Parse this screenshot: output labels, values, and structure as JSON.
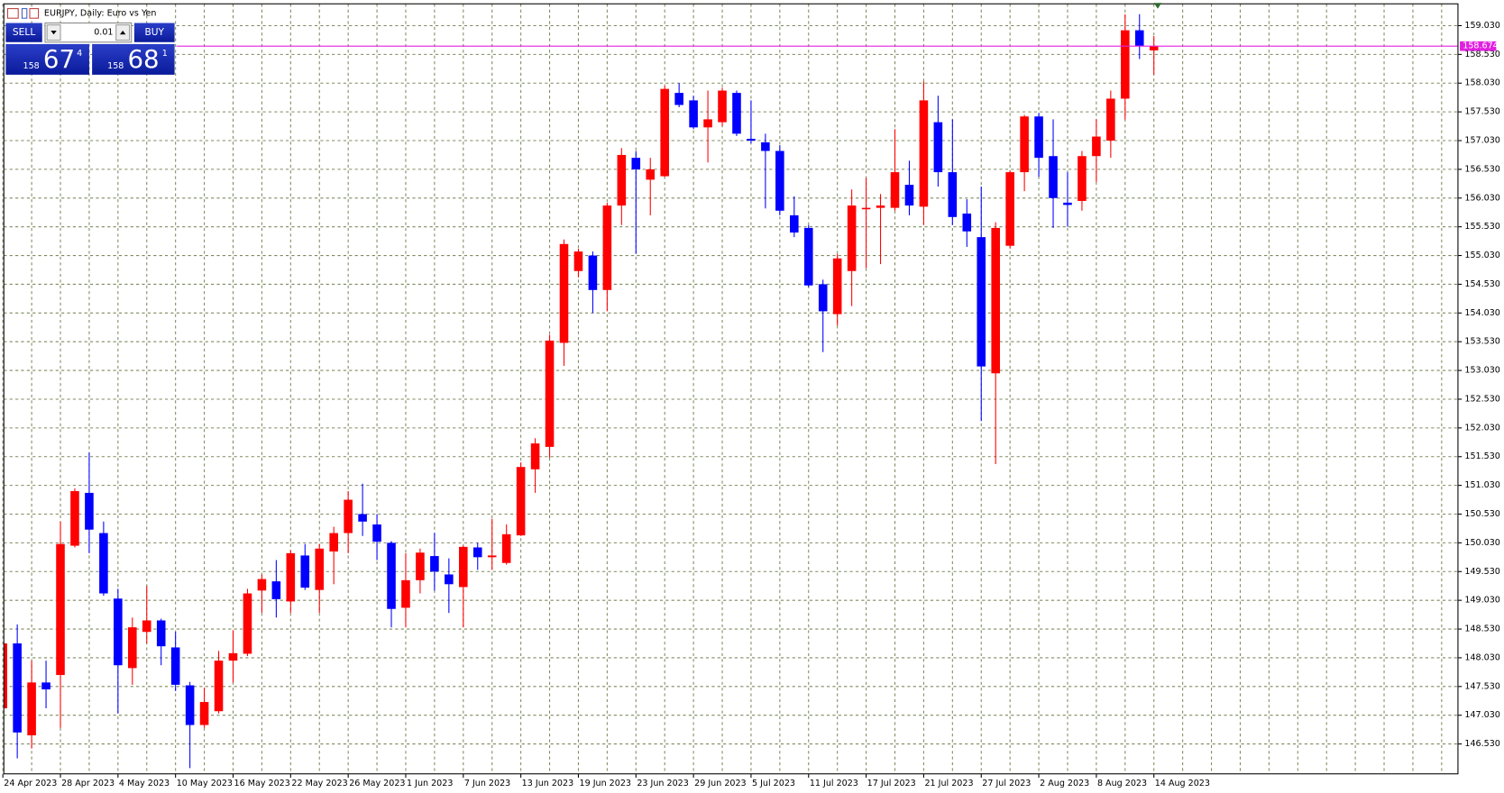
{
  "chart_data": {
    "type": "candlestick",
    "title": "EURJPY, Daily:  Euro vs Yen",
    "trade_panel": {
      "sell_label": "SELL",
      "buy_label": "BUY",
      "lot": 0.01,
      "sell_price": [
        "158",
        "67",
        "4"
      ],
      "buy_price": [
        "158",
        "68",
        "1"
      ]
    },
    "up_color": "#ff0000",
    "down_color": "#0000ff",
    "grid": true,
    "price_line": 158.674,
    "price_line_color": "#e020e0",
    "categories": [
      "24 Apr 2023",
      null,
      null,
      null,
      "28 Apr 2023",
      null,
      null,
      null,
      "4 May 2023",
      null,
      null,
      null,
      "10 May 2023",
      null,
      null,
      null,
      "16 May 2023",
      null,
      null,
      null,
      "22 May 2023",
      null,
      null,
      null,
      "26 May 2023",
      null,
      null,
      null,
      "1 Jun 2023",
      null,
      null,
      null,
      "7 Jun 2023",
      null,
      null,
      null,
      "13 Jun 2023",
      null,
      null,
      null,
      "19 Jun 2023",
      null,
      null,
      null,
      "23 Jun 2023",
      null,
      null,
      null,
      "29 Jun 2023",
      null,
      null,
      null,
      "5 Jul 2023",
      null,
      null,
      null,
      "11 Jul 2023",
      null,
      null,
      null,
      "17 Jul 2023",
      null,
      null,
      null,
      "21 Jul 2023",
      null,
      null,
      null,
      "27 Jul 2023",
      null,
      null,
      null,
      "2 Aug 2023",
      null,
      null,
      null,
      "8 Aug 2023",
      null,
      null,
      null,
      "14 Aug 2023"
    ],
    "open": [
      147.15,
      148.28,
      146.68,
      147.6,
      147.73,
      149.98,
      150.9,
      150.2,
      149.06,
      147.85,
      148.48,
      148.68,
      148.21,
      147.55,
      146.86,
      147.1,
      147.98,
      148.1,
      149.2,
      149.36,
      149.01,
      149.81,
      149.21,
      149.88,
      150.2,
      150.53,
      150.35,
      150.03,
      148.9,
      149.38,
      149.8,
      149.48,
      149.26,
      149.95,
      149.78,
      149.68,
      150.16,
      151.31,
      151.7,
      153.51,
      154.76,
      155.03,
      154.43,
      155.9,
      156.73,
      156.35,
      156.41,
      157.86,
      157.73,
      157.26,
      157.35,
      157.86,
      157.06,
      157.0,
      156.85,
      155.73,
      155.51,
      154.53,
      154.01,
      154.76,
      155.85,
      155.86,
      155.86,
      156.26,
      155.88,
      157.35,
      156.48,
      155.76,
      155.35,
      152.98,
      155.2,
      156.48,
      157.45,
      156.76,
      155.95,
      155.98,
      156.76,
      157.03,
      157.76,
      158.95,
      158.6
    ],
    "high": [
      148.48,
      148.61,
      147.98,
      147.98,
      150.4,
      150.98,
      151.6,
      150.4,
      149.23,
      148.73,
      149.28,
      148.71,
      148.48,
      147.61,
      147.51,
      148.15,
      148.51,
      149.23,
      149.48,
      149.73,
      149.9,
      150.01,
      150.01,
      150.31,
      150.93,
      151.06,
      150.53,
      150.06,
      149.85,
      149.93,
      150.2,
      149.76,
      149.98,
      150.03,
      150.45,
      150.35,
      151.43,
      151.85,
      153.65,
      155.31,
      155.15,
      155.1,
      155.95,
      156.9,
      156.85,
      156.73,
      157.98,
      158.03,
      157.81,
      157.9,
      157.95,
      157.9,
      157.73,
      157.15,
      156.95,
      156.06,
      155.56,
      154.61,
      155.06,
      156.18,
      156.38,
      156.1,
      157.23,
      156.68,
      158.06,
      157.81,
      157.4,
      156.01,
      156.23,
      155.61,
      156.51,
      157.48,
      157.51,
      157.4,
      156.48,
      156.85,
      157.4,
      157.9,
      159.23,
      159.23,
      158.85
    ],
    "low": [
      147.06,
      146.28,
      146.45,
      147.15,
      146.81,
      149.95,
      149.85,
      149.11,
      147.06,
      147.56,
      148.28,
      147.9,
      147.45,
      146.11,
      146.81,
      147.06,
      147.6,
      148.06,
      148.81,
      148.73,
      148.81,
      149.21,
      148.81,
      149.31,
      149.85,
      150.15,
      149.73,
      148.56,
      148.56,
      149.15,
      149.2,
      148.81,
      148.56,
      149.56,
      149.56,
      149.65,
      150.15,
      150.9,
      151.51,
      153.11,
      154.65,
      154.03,
      154.06,
      155.56,
      155.06,
      155.73,
      156.4,
      157.61,
      157.23,
      156.65,
      157.28,
      157.11,
      156.98,
      155.85,
      155.73,
      155.35,
      154.48,
      153.35,
      153.81,
      154.15,
      154.81,
      154.88,
      155.81,
      155.73,
      155.56,
      156.23,
      155.56,
      155.18,
      152.15,
      151.4,
      155.15,
      156.15,
      156.4,
      155.51,
      155.53,
      155.81,
      156.31,
      156.73,
      157.4,
      158.45,
      158.18
    ],
    "close": [
      148.28,
      146.73,
      147.6,
      147.48,
      150.01,
      150.93,
      150.26,
      149.15,
      147.9,
      148.56,
      148.68,
      148.23,
      147.56,
      146.86,
      147.26,
      147.98,
      148.11,
      149.15,
      149.4,
      149.05,
      149.85,
      149.25,
      149.93,
      150.2,
      150.78,
      150.4,
      150.05,
      148.88,
      149.38,
      149.86,
      149.53,
      149.31,
      149.96,
      149.78,
      149.81,
      150.18,
      151.35,
      151.76,
      153.55,
      155.23,
      155.1,
      154.43,
      155.9,
      156.78,
      156.53,
      156.53,
      157.93,
      157.65,
      157.26,
      157.4,
      157.9,
      157.15,
      157.03,
      156.85,
      155.81,
      155.43,
      154.51,
      154.06,
      154.98,
      155.9,
      155.86,
      155.9,
      156.48,
      155.9,
      157.73,
      156.48,
      155.7,
      155.45,
      153.1,
      155.51,
      156.48,
      157.45,
      156.73,
      156.03,
      155.91,
      156.76,
      157.1,
      157.76,
      158.95,
      158.68,
      158.67
    ],
    "ylim": [
      146.01,
      159.41
    ],
    "yticks": [
      {
        "value": 146.53,
        "label": "146.530"
      },
      {
        "value": 147.03,
        "label": "147.030"
      },
      {
        "value": 147.53,
        "label": "147.530"
      },
      {
        "value": 148.03,
        "label": "148.030"
      },
      {
        "value": 148.53,
        "label": "148.530"
      },
      {
        "value": 149.03,
        "label": "149.030"
      },
      {
        "value": 149.53,
        "label": "149.530"
      },
      {
        "value": 150.03,
        "label": "150.030"
      },
      {
        "value": 150.53,
        "label": "150.530"
      },
      {
        "value": 151.03,
        "label": "151.030"
      },
      {
        "value": 151.53,
        "label": "151.530"
      },
      {
        "value": 152.03,
        "label": "152.030"
      },
      {
        "value": 152.53,
        "label": "152.530"
      },
      {
        "value": 153.03,
        "label": "153.030"
      },
      {
        "value": 153.53,
        "label": "153.530"
      },
      {
        "value": 154.03,
        "label": "154.030"
      },
      {
        "value": 154.53,
        "label": "154.530"
      },
      {
        "value": 155.03,
        "label": "155.030"
      },
      {
        "value": 155.53,
        "label": "155.530"
      },
      {
        "value": 156.03,
        "label": "156.030"
      },
      {
        "value": 156.53,
        "label": "156.530"
      },
      {
        "value": 157.03,
        "label": "157.030"
      },
      {
        "value": 157.53,
        "label": "157.530"
      },
      {
        "value": 158.03,
        "label": "158.030"
      },
      {
        "value": 158.53,
        "label": "158.530"
      },
      {
        "value": 159.03,
        "label": "159.030"
      }
    ]
  }
}
